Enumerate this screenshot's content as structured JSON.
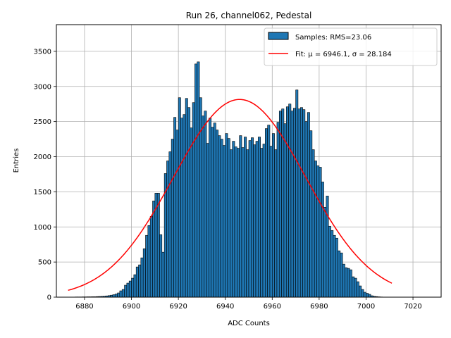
{
  "chart_data": {
    "type": "bar",
    "title": "Run 26, channel062, Pedestal",
    "xlabel": "ADC Counts",
    "ylabel": "Entries",
    "xlim": [
      6868,
      7032
    ],
    "ylim": [
      0,
      3880
    ],
    "xticks": [
      6880,
      6900,
      6920,
      6940,
      6960,
      6980,
      7000,
      7020
    ],
    "yticks": [
      0,
      500,
      1000,
      1500,
      2000,
      2500,
      3000,
      3500
    ],
    "grid": true,
    "legend_position": "top-right",
    "series": [
      {
        "name": "Samples: RMS=23.06",
        "type": "histogram",
        "color": "#1f77b4",
        "edgecolor": "#000000",
        "bin_width": 1,
        "bins": [
          [
            6873,
            2
          ],
          [
            6874,
            2
          ],
          [
            6875,
            2
          ],
          [
            6876,
            3
          ],
          [
            6877,
            3
          ],
          [
            6878,
            3
          ],
          [
            6879,
            4
          ],
          [
            6880,
            4
          ],
          [
            6881,
            5
          ],
          [
            6882,
            5
          ],
          [
            6883,
            6
          ],
          [
            6884,
            6
          ],
          [
            6885,
            8
          ],
          [
            6886,
            10
          ],
          [
            6887,
            12
          ],
          [
            6888,
            14
          ],
          [
            6889,
            18
          ],
          [
            6890,
            22
          ],
          [
            6891,
            28
          ],
          [
            6892,
            35
          ],
          [
            6893,
            45
          ],
          [
            6894,
            60
          ],
          [
            6895,
            90
          ],
          [
            6896,
            110
          ],
          [
            6897,
            170
          ],
          [
            6898,
            200
          ],
          [
            6899,
            230
          ],
          [
            6900,
            270
          ],
          [
            6901,
            320
          ],
          [
            6902,
            430
          ],
          [
            6903,
            460
          ],
          [
            6904,
            560
          ],
          [
            6905,
            690
          ],
          [
            6906,
            880
          ],
          [
            6907,
            1020
          ],
          [
            6908,
            1150
          ],
          [
            6909,
            1370
          ],
          [
            6910,
            1480
          ],
          [
            6911,
            1480
          ],
          [
            6912,
            890
          ],
          [
            6913,
            640
          ],
          [
            6914,
            1760
          ],
          [
            6915,
            1940
          ],
          [
            6916,
            2070
          ],
          [
            6917,
            2250
          ],
          [
            6918,
            2560
          ],
          [
            6919,
            2380
          ],
          [
            6920,
            2840
          ],
          [
            6921,
            2550
          ],
          [
            6922,
            2600
          ],
          [
            6923,
            2830
          ],
          [
            6924,
            2700
          ],
          [
            6925,
            2410
          ],
          [
            6926,
            2770
          ],
          [
            6927,
            3320
          ],
          [
            6928,
            3350
          ],
          [
            6929,
            2840
          ],
          [
            6930,
            2580
          ],
          [
            6931,
            2650
          ],
          [
            6932,
            2190
          ],
          [
            6933,
            2550
          ],
          [
            6934,
            2420
          ],
          [
            6935,
            2480
          ],
          [
            6936,
            2380
          ],
          [
            6937,
            2300
          ],
          [
            6938,
            2250
          ],
          [
            6939,
            2160
          ],
          [
            6940,
            2330
          ],
          [
            6941,
            2260
          ],
          [
            6942,
            2100
          ],
          [
            6943,
            2220
          ],
          [
            6944,
            2140
          ],
          [
            6945,
            2120
          ],
          [
            6946,
            2300
          ],
          [
            6947,
            2130
          ],
          [
            6948,
            2280
          ],
          [
            6949,
            2100
          ],
          [
            6950,
            2230
          ],
          [
            6951,
            2270
          ],
          [
            6952,
            2170
          ],
          [
            6953,
            2220
          ],
          [
            6954,
            2280
          ],
          [
            6955,
            2120
          ],
          [
            6956,
            2180
          ],
          [
            6957,
            2400
          ],
          [
            6958,
            2450
          ],
          [
            6959,
            2150
          ],
          [
            6960,
            2330
          ],
          [
            6961,
            2100
          ],
          [
            6962,
            2490
          ],
          [
            6963,
            2650
          ],
          [
            6964,
            2680
          ],
          [
            6965,
            2470
          ],
          [
            6966,
            2710
          ],
          [
            6967,
            2750
          ],
          [
            6968,
            2650
          ],
          [
            6969,
            2690
          ],
          [
            6970,
            2950
          ],
          [
            6971,
            2680
          ],
          [
            6972,
            2700
          ],
          [
            6973,
            2670
          ],
          [
            6974,
            2500
          ],
          [
            6975,
            2630
          ],
          [
            6976,
            2370
          ],
          [
            6977,
            2100
          ],
          [
            6978,
            1940
          ],
          [
            6979,
            1870
          ],
          [
            6980,
            1850
          ],
          [
            6981,
            1640
          ],
          [
            6982,
            1280
          ],
          [
            6983,
            1440
          ],
          [
            6984,
            1010
          ],
          [
            6985,
            950
          ],
          [
            6986,
            880
          ],
          [
            6987,
            840
          ],
          [
            6988,
            660
          ],
          [
            6989,
            630
          ],
          [
            6990,
            470
          ],
          [
            6991,
            420
          ],
          [
            6992,
            410
          ],
          [
            6993,
            390
          ],
          [
            6994,
            290
          ],
          [
            6995,
            270
          ],
          [
            6996,
            220
          ],
          [
            6997,
            160
          ],
          [
            6998,
            110
          ],
          [
            6999,
            70
          ],
          [
            7000,
            55
          ],
          [
            7001,
            40
          ],
          [
            7002,
            20
          ],
          [
            7003,
            12
          ],
          [
            7004,
            8
          ],
          [
            7005,
            5
          ],
          [
            7006,
            3
          ],
          [
            7007,
            2
          ],
          [
            7008,
            1
          ],
          [
            7009,
            1
          ]
        ]
      },
      {
        "name": "Fit: μ = 6946.1, σ = 28.184",
        "type": "line",
        "color": "#ff0000",
        "function": "gaussian",
        "amplitude": 2815,
        "mu": 6946.1,
        "sigma": 28.184,
        "x_range": [
          6873,
          7011
        ]
      }
    ]
  }
}
